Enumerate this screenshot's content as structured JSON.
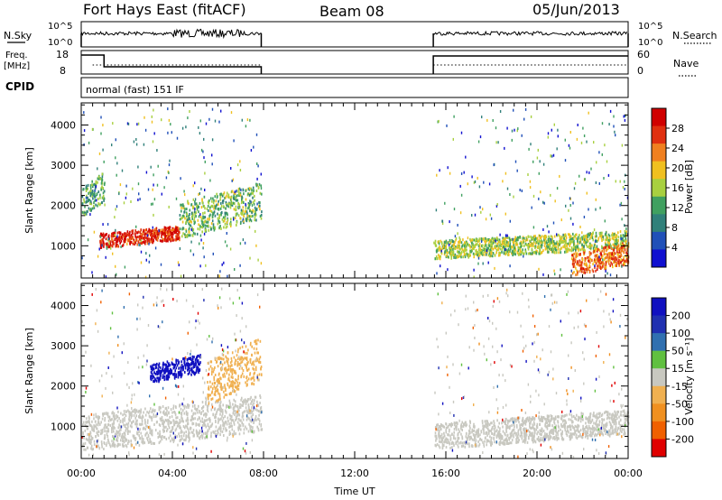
{
  "header": {
    "station": "Fort Hays East (fitACF)",
    "beam": "Beam 08",
    "date": "05/Jun/2013"
  },
  "top_panels": {
    "nsky_label": "N.Sky",
    "nsearch_label": "N.Search",
    "nsky_ticks": [
      "10^5",
      "10^0"
    ],
    "freq_label_line1": "Freq.",
    "freq_label_line2": "[MHz]",
    "freq_ticks": [
      "18",
      "8"
    ],
    "nave_label": "Nave",
    "nave_ticks": [
      "60",
      "0"
    ],
    "cpid_label": "CPID",
    "cpid_text": "normal (fast) 151 IF"
  },
  "colors": {
    "power_scale": [
      "#1010d0",
      "#2050b8",
      "#30807a",
      "#40a060",
      "#a8d040",
      "#f0c020",
      "#f08020",
      "#e03010",
      "#d00000"
    ],
    "velocity_scale": [
      "#e00000",
      "#f06000",
      "#f09020",
      "#f0b050",
      "#c8c8c0",
      "#60c040",
      "#3070b0",
      "#2030b0",
      "#1010c0"
    ],
    "ground_scatter": "#c8c8c0"
  },
  "chart_data": [
    {
      "type": "heatmap",
      "name": "power",
      "ylabel": "Slant Range [km]",
      "yticks": [
        1000,
        2000,
        3000,
        4000
      ],
      "ylim": [
        200,
        4550
      ],
      "xlim_hours": [
        0,
        24
      ],
      "data_gap_hours": [
        7.9,
        15.45
      ],
      "colorbar_label": "Power [dB]",
      "colorbar_ticks": [
        4,
        8,
        12,
        16,
        20,
        24,
        28
      ],
      "features": [
        {
          "desc": "strong echo band",
          "hours": [
            0.8,
            4.3
          ],
          "range_km": [
            1050,
            1450
          ],
          "level": 28
        },
        {
          "desc": "rising band",
          "hours": [
            4.3,
            7.9
          ],
          "range_km": [
            1400,
            2400
          ],
          "level": 14
        },
        {
          "desc": "early band",
          "hours": [
            0.0,
            1.0
          ],
          "range_km": [
            1900,
            2700
          ],
          "level": 12
        },
        {
          "desc": "evening band",
          "hours": [
            15.5,
            23.9
          ],
          "range_km": [
            800,
            1300
          ],
          "level": 16
        },
        {
          "desc": "late strong echo",
          "hours": [
            21.5,
            24.0
          ],
          "range_km": [
            400,
            1000
          ],
          "level": 24
        }
      ]
    },
    {
      "type": "heatmap",
      "name": "velocity",
      "ylabel": "Slant Range [km]",
      "yticks": [
        1000,
        2000,
        3000,
        4000
      ],
      "ylim": [
        200,
        4550
      ],
      "xlim_hours": [
        0,
        24
      ],
      "xticks": [
        "00:00",
        "04:00",
        "08:00",
        "12:00",
        "16:00",
        "20:00",
        "00:00"
      ],
      "xlabel": "Time UT",
      "colorbar_label": "Velocity [m s⁻¹]",
      "colorbar_ticks": [
        200,
        100,
        50,
        15,
        -15,
        -50,
        -100,
        -200
      ],
      "features": [
        {
          "desc": "ground scatter band",
          "hours": [
            0.0,
            7.9
          ],
          "range_km": [
            600,
            1600
          ],
          "level": 0
        },
        {
          "desc": "ground scatter band",
          "hours": [
            15.5,
            24.0
          ],
          "range_km": [
            600,
            1300
          ],
          "level": 0
        },
        {
          "desc": "positive velocity patch",
          "hours": [
            3.0,
            5.2
          ],
          "range_km": [
            2200,
            2700
          ],
          "level": 200
        },
        {
          "desc": "negative velocity patch",
          "hours": [
            5.5,
            7.9
          ],
          "range_km": [
            1800,
            3000
          ],
          "level": -50
        }
      ]
    }
  ]
}
